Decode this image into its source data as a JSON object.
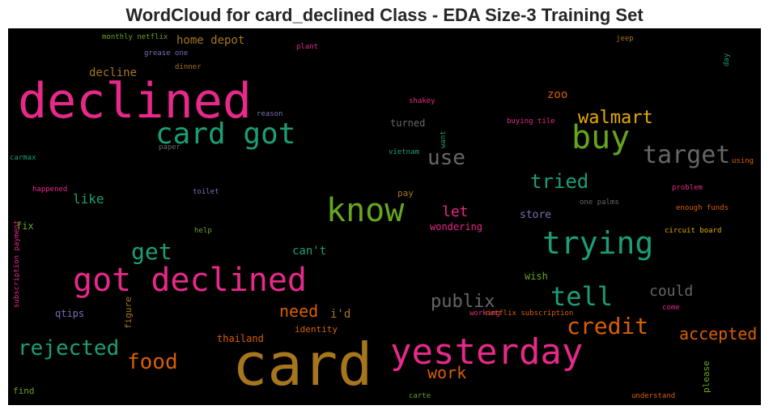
{
  "title": "WordCloud for card_declined Class - EDA Size-3 Training Set",
  "chart_data": {
    "type": "wordcloud",
    "background": "#000000",
    "palette": [
      "#e7298a",
      "#1b9e77",
      "#d95f02",
      "#66a61e",
      "#e6ab02",
      "#a6761d",
      "#666666",
      "#7570b3"
    ],
    "words": [
      {
        "text": "card",
        "color": "#a6761d"
      },
      {
        "text": "declined",
        "color": "#e7298a"
      },
      {
        "text": "yesterday",
        "color": "#e7298a"
      },
      {
        "text": "got declined",
        "color": "#e7298a"
      },
      {
        "text": "card got",
        "color": "#1b9e77"
      },
      {
        "text": "know",
        "color": "#66a61e"
      },
      {
        "text": "trying",
        "color": "#1b9e77"
      },
      {
        "text": "buy",
        "color": "#66a61e"
      },
      {
        "text": "target",
        "color": "#666666"
      },
      {
        "text": "tell",
        "color": "#1b9e77"
      },
      {
        "text": "credit",
        "color": "#d95f02"
      },
      {
        "text": "rejected",
        "color": "#1b9e77"
      },
      {
        "text": "food",
        "color": "#d95f02"
      },
      {
        "text": "get",
        "color": "#1b9e77"
      },
      {
        "text": "walmart",
        "color": "#e6ab02"
      },
      {
        "text": "use",
        "color": "#666666"
      },
      {
        "text": "tried",
        "color": "#1b9e77"
      },
      {
        "text": "publix",
        "color": "#666666"
      },
      {
        "text": "accepted",
        "color": "#d95f02"
      },
      {
        "text": "work",
        "color": "#d95f02"
      },
      {
        "text": "need",
        "color": "#d95f02"
      },
      {
        "text": "let",
        "color": "#e7298a"
      },
      {
        "text": "could",
        "color": "#666666"
      },
      {
        "text": "like",
        "color": "#1b9e77"
      },
      {
        "text": "decline",
        "color": "#a6761d"
      },
      {
        "text": "home depot",
        "color": "#a6761d"
      },
      {
        "text": "zoo",
        "color": "#d95f02"
      },
      {
        "text": "i'd",
        "color": "#a6761d"
      },
      {
        "text": "can't",
        "color": "#1b9e77"
      },
      {
        "text": "store",
        "color": "#7570b3"
      },
      {
        "text": "wondering",
        "color": "#e7298a"
      },
      {
        "text": "identity",
        "color": "#d95f02"
      },
      {
        "text": "thailand",
        "color": "#d95f02"
      },
      {
        "text": "figure",
        "color": "#a6761d"
      },
      {
        "text": "qtips",
        "color": "#7570b3"
      },
      {
        "text": "wish",
        "color": "#66a61e"
      },
      {
        "text": "fix",
        "color": "#66a61e"
      },
      {
        "text": "pay",
        "color": "#a6761d"
      },
      {
        "text": "turned",
        "color": "#666666"
      },
      {
        "text": "monthly netflix",
        "color": "#66a61e"
      },
      {
        "text": "grease one",
        "color": "#7570b3"
      },
      {
        "text": "plant",
        "color": "#e7298a"
      },
      {
        "text": "dinner",
        "color": "#a6761d"
      },
      {
        "text": "jeep",
        "color": "#a6761d"
      },
      {
        "text": "day",
        "color": "#1b9e77"
      },
      {
        "text": "reason",
        "color": "#7570b3"
      },
      {
        "text": "shakey",
        "color": "#e7298a"
      },
      {
        "text": "buying tile",
        "color": "#e7298a"
      },
      {
        "text": "want",
        "color": "#1b9e77"
      },
      {
        "text": "paper",
        "color": "#666666"
      },
      {
        "text": "carmax",
        "color": "#1b9e77"
      },
      {
        "text": "vietnam",
        "color": "#1b9e77"
      },
      {
        "text": "using",
        "color": "#d95f02"
      },
      {
        "text": "happened",
        "color": "#e7298a"
      },
      {
        "text": "toilet",
        "color": "#7570b3"
      },
      {
        "text": "problem",
        "color": "#e7298a"
      },
      {
        "text": "one palms",
        "color": "#666666"
      },
      {
        "text": "enough funds",
        "color": "#d95f02"
      },
      {
        "text": "help",
        "color": "#66a61e"
      },
      {
        "text": "circuit board",
        "color": "#e6ab02"
      },
      {
        "text": "subscription payment",
        "color": "#e7298a"
      },
      {
        "text": "working",
        "color": "#e7298a"
      },
      {
        "text": "netflix subscription",
        "color": "#d95f02"
      },
      {
        "text": "come",
        "color": "#e7298a"
      },
      {
        "text": "please",
        "color": "#66a61e"
      },
      {
        "text": "find",
        "color": "#66a61e"
      },
      {
        "text": "carte",
        "color": "#66a61e"
      },
      {
        "text": "understand",
        "color": "#d95f02"
      }
    ]
  }
}
